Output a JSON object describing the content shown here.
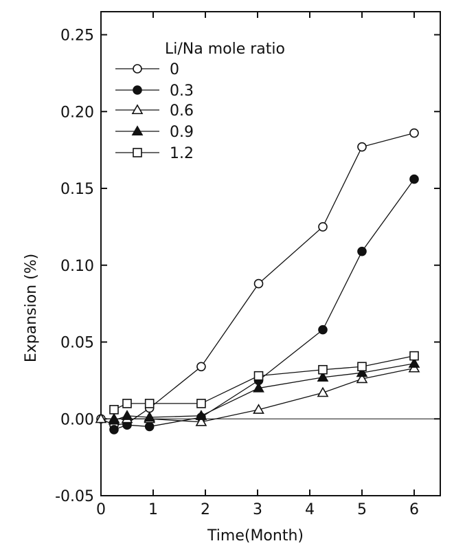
{
  "chart_data": {
    "type": "line",
    "xlabel": "Time(Month)",
    "ylabel": "Expansion (%)",
    "xlim": [
      0,
      6.5
    ],
    "ylim": [
      -0.05,
      0.265
    ],
    "xticks": [
      0,
      1,
      2,
      3,
      4,
      5,
      6
    ],
    "xtick_labels": [
      "0",
      "1",
      "2",
      "3",
      "4",
      "5",
      "6"
    ],
    "yticks": [
      -0.05,
      0.0,
      0.05,
      0.1,
      0.15,
      0.2,
      0.25
    ],
    "ytick_labels": [
      "-0.05",
      "0.00",
      "0.05",
      "0.10",
      "0.15",
      "0.20",
      "0.25"
    ],
    "reference_line_y": 0.0,
    "grid": false,
    "legend": {
      "title": "Li/Na mole ratio",
      "placement": "top-left"
    },
    "series": [
      {
        "name": "0",
        "marker": "circle-open",
        "x": [
          0.0,
          0.25,
          0.5,
          0.93,
          1.92,
          3.02,
          4.25,
          5.0,
          6.0
        ],
        "y": [
          0.0,
          -0.004,
          -0.003,
          0.007,
          0.034,
          0.088,
          0.125,
          0.177,
          0.186
        ]
      },
      {
        "name": "0.3",
        "marker": "circle-filled",
        "x": [
          0.25,
          0.5,
          0.93,
          1.92,
          3.02,
          4.25,
          5.0,
          6.0
        ],
        "y": [
          -0.007,
          -0.004,
          -0.005,
          0.001,
          0.025,
          0.058,
          0.109,
          0.156
        ]
      },
      {
        "name": "0.6",
        "marker": "triangle-open",
        "x": [
          0.0,
          0.25,
          0.5,
          0.93,
          1.92,
          3.02,
          4.25,
          5.0,
          6.0
        ],
        "y": [
          0.0,
          0.0,
          0.0,
          0.0,
          -0.002,
          0.006,
          0.017,
          0.026,
          0.033
        ]
      },
      {
        "name": "0.9",
        "marker": "triangle-filled",
        "x": [
          0.25,
          0.5,
          0.93,
          1.92,
          3.02,
          4.25,
          5.0,
          6.0
        ],
        "y": [
          -0.001,
          0.002,
          0.001,
          0.002,
          0.02,
          0.027,
          0.03,
          0.036
        ]
      },
      {
        "name": "1.2",
        "marker": "square-open",
        "x": [
          0.25,
          0.5,
          0.93,
          1.92,
          3.02,
          4.25,
          5.0,
          6.0
        ],
        "y": [
          0.006,
          0.01,
          0.01,
          0.01,
          0.028,
          0.032,
          0.034,
          0.041
        ]
      }
    ]
  }
}
